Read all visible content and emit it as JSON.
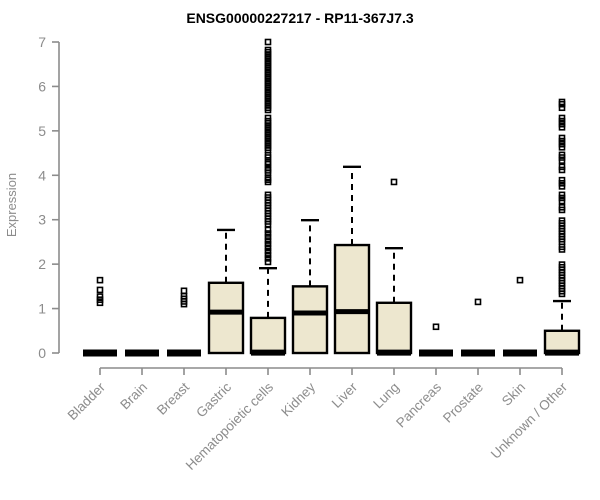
{
  "header": {
    "title": "ENSG00000227217 - RP11-367J7.3"
  },
  "chart_data": {
    "type": "boxplot",
    "title": "ENSG00000227217 - RP11-367J7.3",
    "xlabel": "",
    "ylabel": "Expression",
    "ylim": [
      0,
      7
    ],
    "yticks": [
      0,
      1,
      2,
      3,
      4,
      5,
      6,
      7
    ],
    "grid": false,
    "legend": "none",
    "colors": {
      "box_fill": "#EDE7CF",
      "box_stroke": "#000000",
      "median": "#000000",
      "outlier": "#000000",
      "axis": "#8c8c8c",
      "tick_label": "#8c8c8c",
      "title": "#000000",
      "background": "#ffffff"
    },
    "categories": [
      "Bladder",
      "Brain",
      "Breast",
      "Gastric",
      "Hematopoietic cells",
      "Kidney",
      "Liver",
      "Lung",
      "Pancreas",
      "Prostate",
      "Skin",
      "Unknown / Other"
    ],
    "series": [
      {
        "category": "Bladder",
        "q1": 0,
        "median": 0,
        "q3": 0,
        "whisker_low": 0,
        "whisker_high": 0,
        "outliers": [
          1.13,
          1.2,
          1.27,
          1.42,
          1.64
        ]
      },
      {
        "category": "Brain",
        "q1": 0,
        "median": 0,
        "q3": 0,
        "whisker_low": 0,
        "whisker_high": 0,
        "outliers": []
      },
      {
        "category": "Breast",
        "q1": 0,
        "median": 0,
        "q3": 0,
        "whisker_low": 0,
        "whisker_high": 0,
        "outliers": [
          1.1,
          1.16,
          1.22,
          1.28,
          1.4
        ]
      },
      {
        "category": "Gastric",
        "q1": 0,
        "median": 0.92,
        "q3": 1.58,
        "whisker_low": 0,
        "whisker_high": 2.77,
        "outliers": []
      },
      {
        "category": "Hematopoietic cells",
        "q1": 0,
        "median": 0.02,
        "q3": 0.79,
        "whisker_low": 0,
        "whisker_high": 1.91,
        "outliers": [
          2.05,
          2.13,
          2.21,
          2.29,
          2.37,
          2.45,
          2.53,
          2.61,
          2.69,
          2.77,
          2.9,
          2.96,
          3.02,
          3.08,
          3.14,
          3.2,
          3.26,
          3.32,
          3.38,
          3.44,
          3.5,
          3.56,
          3.85,
          3.9,
          3.94,
          4.06,
          4.11,
          4.16,
          4.25,
          4.3,
          4.4,
          4.45,
          4.57,
          4.62,
          4.67,
          4.72,
          4.77,
          4.82,
          4.87,
          4.92,
          4.97,
          5.02,
          5.07,
          5.12,
          5.17,
          5.22,
          5.29,
          5.47,
          5.52,
          5.57,
          5.62,
          5.67,
          5.72,
          5.77,
          5.82,
          5.87,
          5.92,
          5.97,
          6.02,
          6.07,
          6.12,
          6.17,
          6.22,
          6.27,
          6.32,
          6.37,
          6.42,
          6.47,
          6.52,
          6.57,
          6.62,
          6.67,
          6.72,
          6.77,
          6.82,
          7.0
        ]
      },
      {
        "category": "Kidney",
        "q1": 0,
        "median": 0.9,
        "q3": 1.5,
        "whisker_low": 0,
        "whisker_high": 2.99,
        "outliers": []
      },
      {
        "category": "Liver",
        "q1": 0,
        "median": 0.93,
        "q3": 2.43,
        "whisker_low": 0,
        "whisker_high": 4.19,
        "outliers": []
      },
      {
        "category": "Lung",
        "q1": 0,
        "median": 0.02,
        "q3": 1.13,
        "whisker_low": 0,
        "whisker_high": 2.36,
        "outliers": [
          3.85
        ]
      },
      {
        "category": "Pancreas",
        "q1": 0,
        "median": 0,
        "q3": 0,
        "whisker_low": 0,
        "whisker_high": 0,
        "outliers": [
          0.59
        ]
      },
      {
        "category": "Prostate",
        "q1": 0,
        "median": 0,
        "q3": 0,
        "whisker_low": 0,
        "whisker_high": 0,
        "outliers": [
          1.15
        ]
      },
      {
        "category": "Skin",
        "q1": 0,
        "median": 0,
        "q3": 0,
        "whisker_low": 0,
        "whisker_high": 0,
        "outliers": [
          1.64
        ]
      },
      {
        "category": "Unknown / Other",
        "q1": 0,
        "median": 0.02,
        "q3": 0.5,
        "whisker_low": 0,
        "whisker_high": 1.17,
        "outliers": [
          1.33,
          1.39,
          1.45,
          1.51,
          1.57,
          1.63,
          1.69,
          1.75,
          1.81,
          1.87,
          1.93,
          1.99,
          2.33,
          2.39,
          2.5,
          2.56,
          2.62,
          2.68,
          2.74,
          2.8,
          2.86,
          2.92,
          2.98,
          3.22,
          3.28,
          3.42,
          3.49,
          3.56,
          3.75,
          3.82,
          3.89,
          4.12,
          4.19,
          4.33,
          4.4,
          4.46,
          4.63,
          4.7,
          4.77,
          4.84,
          5.08,
          5.15,
          5.22,
          5.29,
          5.52,
          5.6,
          5.65
        ]
      }
    ]
  }
}
